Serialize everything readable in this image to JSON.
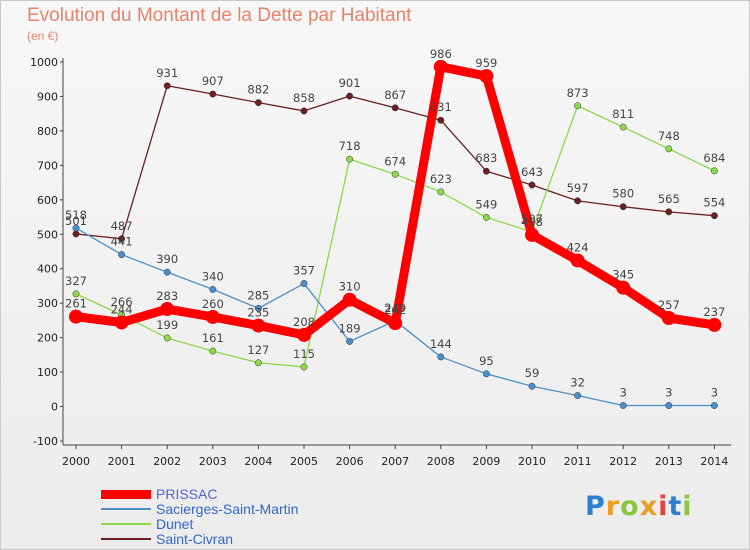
{
  "title": "Evolution du Montant de la Dette par Habitant",
  "subtitle": "(en €)",
  "logo": {
    "text": "Proxiti",
    "colors": [
      "#2e7fcf",
      "#e8a020",
      "#8cc63f",
      "#e8a020",
      "#e8423c",
      "#2e7fcf",
      "#8cc63f"
    ]
  },
  "chart_data": {
    "type": "line",
    "title": "Evolution du Montant de la Dette par Habitant",
    "ylabel": "(en €)",
    "xlabel": "",
    "x": [
      "2000",
      "2001",
      "2002",
      "2003",
      "2004",
      "2005",
      "2006",
      "2007",
      "2008",
      "2009",
      "2010",
      "2011",
      "2012",
      "2013",
      "2014"
    ],
    "ylim": [
      -100,
      1000
    ],
    "yticks": [
      "-100",
      "0",
      "100",
      "200",
      "300",
      "400",
      "500",
      "600",
      "700",
      "800",
      "900",
      "1000"
    ],
    "grid": false,
    "legend": "bottom-left",
    "series": [
      {
        "name": "PRISSAC",
        "color": "#ff0000",
        "values": [
          261,
          244,
          283,
          260,
          235,
          208,
          310,
          242,
          986,
          959,
          498,
          424,
          345,
          257,
          237
        ]
      },
      {
        "name": "Sacierges-Saint-Martin",
        "color": "#4a8fc9",
        "values": [
          518,
          441,
          390,
          340,
          285,
          357,
          189,
          249,
          144,
          95,
          59,
          32,
          3,
          3,
          3
        ]
      },
      {
        "name": "Dunet",
        "color": "#8cd94a",
        "values": [
          327,
          266,
          199,
          161,
          127,
          115,
          718,
          674,
          623,
          549,
          507,
          873,
          811,
          748,
          684
        ]
      },
      {
        "name": "Saint-Civran",
        "color": "#6b1f1f",
        "values": [
          501,
          487,
          931,
          907,
          882,
          858,
          901,
          867,
          831,
          683,
          643,
          597,
          580,
          565,
          554
        ]
      }
    ]
  }
}
